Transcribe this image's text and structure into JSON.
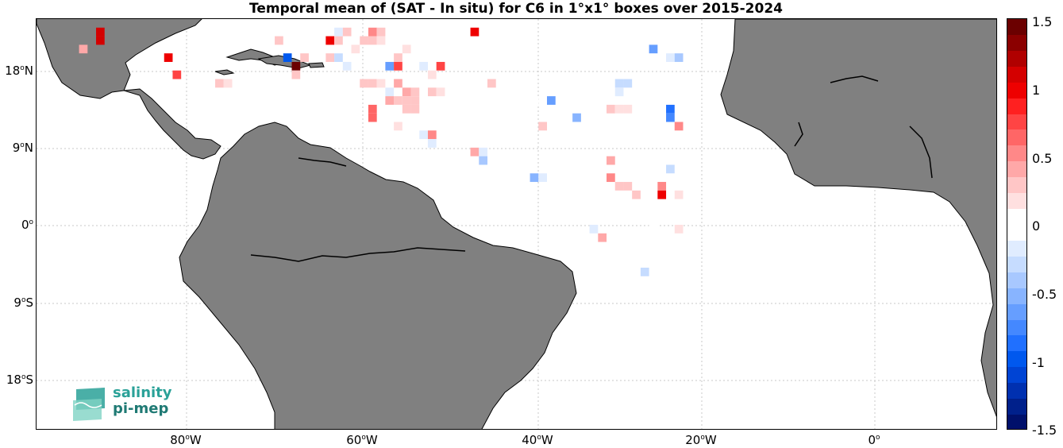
{
  "title": "Temporal mean of (SAT - In situ) for C6 in 1°x1° boxes over 2015-2024",
  "logo": {
    "line1": "salinity",
    "line2": "pi-mep"
  },
  "lat_labels": [
    "18",
    "9",
    "0",
    "9",
    "18"
  ],
  "lat_suffix": [
    "N",
    "N",
    "",
    "S",
    "S"
  ],
  "lon_labels": [
    "80",
    "60",
    "40",
    "20",
    "0"
  ],
  "lon_suffix": [
    "W",
    "W",
    "W",
    "W",
    ""
  ],
  "colorbar": {
    "ticks": [
      "1.5",
      "1",
      "0.5",
      "0",
      "-0.5",
      "-1",
      "-1.5"
    ],
    "colors": [
      "#6b0000",
      "#8b0000",
      "#b00000",
      "#d40000",
      "#ee0000",
      "#ff2020",
      "#ff4444",
      "#ff6666",
      "#ff8888",
      "#ffa8a8",
      "#ffc6c6",
      "#ffe0e0",
      "#ffffff",
      "#ffffff",
      "#e0ecff",
      "#c6dcff",
      "#a8c8ff",
      "#88b4ff",
      "#669eff",
      "#4488ff",
      "#2070ff",
      "#0058ee",
      "#0044d4",
      "#0030b0",
      "#00208b",
      "#00106b"
    ]
  },
  "chart_data": {
    "type": "heatmap",
    "title": "Temporal mean of (SAT - In situ) for C6 in 1°x1° boxes over 2015-2024",
    "xlabel": "",
    "ylabel": "",
    "lon_range": [
      -98,
      15
    ],
    "lat_range": [
      -24,
      24
    ],
    "vmin": -1.5,
    "vmax": 1.5,
    "cells": [
      {
        "lon": -90.5,
        "lat": 22.5,
        "v": 1.1
      },
      {
        "lon": -90.5,
        "lat": 21.5,
        "v": 1.1
      },
      {
        "lon": -92.5,
        "lat": 20.5,
        "v": 0.4
      },
      {
        "lon": -82.5,
        "lat": 19.5,
        "v": 1.0
      },
      {
        "lon": -81.5,
        "lat": 17.5,
        "v": 0.8
      },
      {
        "lon": -76.5,
        "lat": 16.5,
        "v": 0.3
      },
      {
        "lon": -75.5,
        "lat": 16.5,
        "v": 0.2
      },
      {
        "lon": -68.5,
        "lat": 19.5,
        "v": -1.0
      },
      {
        "lon": -67.5,
        "lat": 18.5,
        "v": 1.5
      },
      {
        "lon": -67.5,
        "lat": 17.5,
        "v": 0.3
      },
      {
        "lon": -66.5,
        "lat": 19.5,
        "v": 0.3
      },
      {
        "lon": -69.5,
        "lat": 21.5,
        "v": 0.3
      },
      {
        "lon": -63.5,
        "lat": 21.5,
        "v": 1.0
      },
      {
        "lon": -62.5,
        "lat": 21.5,
        "v": 0.3
      },
      {
        "lon": -63.5,
        "lat": 19.5,
        "v": 0.3
      },
      {
        "lon": -62.5,
        "lat": 19.5,
        "v": -0.3
      },
      {
        "lon": -61.5,
        "lat": 18.5,
        "v": -0.2
      },
      {
        "lon": -62.5,
        "lat": 22.5,
        "v": -0.2
      },
      {
        "lon": -61.5,
        "lat": 22.5,
        "v": 0.3
      },
      {
        "lon": -59.5,
        "lat": 21.5,
        "v": 0.3
      },
      {
        "lon": -58.5,
        "lat": 21.5,
        "v": 0.3
      },
      {
        "lon": -57.5,
        "lat": 21.5,
        "v": 0.2
      },
      {
        "lon": -58.5,
        "lat": 22.5,
        "v": 0.5
      },
      {
        "lon": -57.5,
        "lat": 22.5,
        "v": 0.3
      },
      {
        "lon": -60.5,
        "lat": 20.5,
        "v": 0.2
      },
      {
        "lon": -54.5,
        "lat": 20.5,
        "v": 0.2
      },
      {
        "lon": -55.5,
        "lat": 19.5,
        "v": 0.3
      },
      {
        "lon": -56.5,
        "lat": 18.5,
        "v": -0.6
      },
      {
        "lon": -55.5,
        "lat": 18.5,
        "v": 0.8
      },
      {
        "lon": -52.5,
        "lat": 18.5,
        "v": -0.2
      },
      {
        "lon": -50.5,
        "lat": 18.5,
        "v": 0.8
      },
      {
        "lon": -51.5,
        "lat": 17.5,
        "v": 0.2
      },
      {
        "lon": -46.5,
        "lat": 22.5,
        "v": 1.0
      },
      {
        "lon": -59.5,
        "lat": 16.5,
        "v": 0.3
      },
      {
        "lon": -58.5,
        "lat": 16.5,
        "v": 0.3
      },
      {
        "lon": -57.5,
        "lat": 16.5,
        "v": 0.2
      },
      {
        "lon": -55.5,
        "lat": 16.5,
        "v": 0.4
      },
      {
        "lon": -54.5,
        "lat": 15.5,
        "v": 0.4
      },
      {
        "lon": -53.5,
        "lat": 15.5,
        "v": 0.3
      },
      {
        "lon": -51.5,
        "lat": 15.5,
        "v": 0.3
      },
      {
        "lon": -50.5,
        "lat": 15.5,
        "v": 0.2
      },
      {
        "lon": -56.5,
        "lat": 15.5,
        "v": -0.2
      },
      {
        "lon": -55.5,
        "lat": 14.5,
        "v": 0.3
      },
      {
        "lon": -54.5,
        "lat": 14.5,
        "v": 0.3
      },
      {
        "lon": -53.5,
        "lat": 14.5,
        "v": 0.3
      },
      {
        "lon": -54.5,
        "lat": 13.5,
        "v": 0.3
      },
      {
        "lon": -53.5,
        "lat": 13.5,
        "v": 0.3
      },
      {
        "lon": -56.5,
        "lat": 14.5,
        "v": 0.4
      },
      {
        "lon": -58.5,
        "lat": 13.5,
        "v": 0.6
      },
      {
        "lon": -58.5,
        "lat": 12.5,
        "v": 0.6
      },
      {
        "lon": -55.5,
        "lat": 11.5,
        "v": 0.2
      },
      {
        "lon": -44.5,
        "lat": 16.5,
        "v": 0.3
      },
      {
        "lon": -52.5,
        "lat": 10.5,
        "v": -0.2
      },
      {
        "lon": -51.5,
        "lat": 10.5,
        "v": 0.5
      },
      {
        "lon": -51.5,
        "lat": 9.5,
        "v": -0.2
      },
      {
        "lon": -46.5,
        "lat": 8.5,
        "v": 0.4
      },
      {
        "lon": -45.5,
        "lat": 8.5,
        "v": -0.2
      },
      {
        "lon": -45.5,
        "lat": 7.5,
        "v": -0.4
      },
      {
        "lon": -39.5,
        "lat": 14.5,
        "v": -0.1
      },
      {
        "lon": -37.5,
        "lat": 14.5,
        "v": -0.6
      },
      {
        "lon": -39.5,
        "lat": 5.5,
        "v": -0.5
      },
      {
        "lon": -38.5,
        "lat": 5.5,
        "v": -0.2
      },
      {
        "lon": -38.5,
        "lat": 11.5,
        "v": 0.3
      },
      {
        "lon": -34.5,
        "lat": 12.5,
        "v": -0.5
      },
      {
        "lon": -34.5,
        "lat": 1.5,
        "v": -0.1
      },
      {
        "lon": -32.5,
        "lat": -0.5,
        "v": -0.2
      },
      {
        "lon": -31.5,
        "lat": -1.5,
        "v": 0.4
      },
      {
        "lon": -30.5,
        "lat": 13.5,
        "v": 0.3
      },
      {
        "lon": -29.5,
        "lat": 13.5,
        "v": 0.2
      },
      {
        "lon": -28.5,
        "lat": 13.5,
        "v": 0.2
      },
      {
        "lon": -29.5,
        "lat": 16.5,
        "v": -0.3
      },
      {
        "lon": -28.5,
        "lat": 16.5,
        "v": -0.3
      },
      {
        "lon": -29.5,
        "lat": 15.5,
        "v": -0.2
      },
      {
        "lon": -30.5,
        "lat": 7.5,
        "v": 0.4
      },
      {
        "lon": -30.5,
        "lat": 5.5,
        "v": 0.5
      },
      {
        "lon": -29.5,
        "lat": 4.5,
        "v": 0.3
      },
      {
        "lon": -28.5,
        "lat": 4.5,
        "v": 0.3
      },
      {
        "lon": -27.5,
        "lat": 3.5,
        "v": 0.3
      },
      {
        "lon": -26.5,
        "lat": -5.5,
        "v": -0.3
      },
      {
        "lon": -25.5,
        "lat": 20.5,
        "v": -0.6
      },
      {
        "lon": -25.5,
        "lat": -0.5,
        "v": -0.1
      },
      {
        "lon": -23.5,
        "lat": 20.5,
        "v": -0.1
      },
      {
        "lon": -23.5,
        "lat": 19.5,
        "v": -0.2
      },
      {
        "lon": -22.5,
        "lat": 19.5,
        "v": -0.4
      },
      {
        "lon": -24.5,
        "lat": 4.5,
        "v": 0.5
      },
      {
        "lon": -24.5,
        "lat": 3.5,
        "v": 1.0
      },
      {
        "lon": -23.5,
        "lat": 13.5,
        "v": -0.9
      },
      {
        "lon": -23.5,
        "lat": 12.5,
        "v": -0.7
      },
      {
        "lon": -22.5,
        "lat": 11.5,
        "v": 0.5
      },
      {
        "lon": -23.5,
        "lat": 6.5,
        "v": -0.3
      },
      {
        "lon": -22.5,
        "lat": 3.5,
        "v": 0.2
      },
      {
        "lon": -23.5,
        "lat": 1.5,
        "v": -0.1
      },
      {
        "lon": -22.5,
        "lat": 1.5,
        "v": -0.1
      },
      {
        "lon": -22.5,
        "lat": -0.5,
        "v": 0.2
      }
    ]
  }
}
